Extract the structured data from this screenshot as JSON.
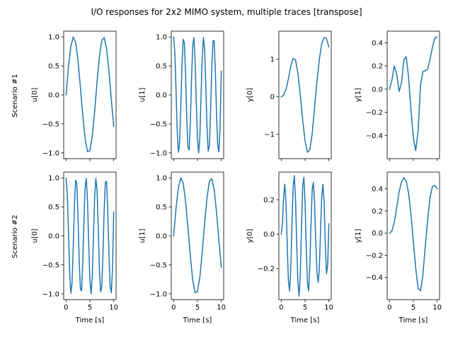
{
  "figure": {
    "title": "I/O responses for 2x2 MIMO system, multiple traces [transpose]",
    "row_labels": [
      "Scenario #1",
      "Scenario #2"
    ],
    "line_color": "#1f77b4"
  },
  "chart_data": [
    {
      "type": "line",
      "row": 0,
      "col": 0,
      "xlabel": "",
      "ylabel": "u[0]",
      "xlim": [
        -0.5,
        10.5
      ],
      "ylim": [
        -1.1,
        1.1
      ],
      "xticks": [
        0,
        5,
        10
      ],
      "xtick_labels_visible": false,
      "yticks": [
        -1.0,
        -0.5,
        0.0,
        0.5,
        1.0
      ],
      "ytick_labels": [
        "−1.0",
        "−0.5",
        "0.0",
        "0.5",
        "1.0"
      ],
      "series": [
        {
          "x": [
            0,
            0.5,
            1,
            1.5,
            2,
            2.5,
            3,
            3.5,
            4,
            4.5,
            5,
            5.5,
            6,
            6.5,
            7,
            7.5,
            8,
            8.5,
            9,
            9.5,
            10
          ],
          "y": [
            0,
            0.48,
            0.84,
            1.0,
            0.91,
            0.6,
            0.14,
            -0.35,
            -0.76,
            -0.98,
            -0.96,
            -0.71,
            -0.28,
            0.22,
            0.66,
            0.94,
            0.99,
            0.8,
            0.41,
            -0.08,
            -0.54
          ]
        }
      ]
    },
    {
      "type": "line",
      "row": 0,
      "col": 1,
      "xlabel": "",
      "ylabel": "u[1]",
      "xlim": [
        -0.5,
        10.5
      ],
      "ylim": [
        -1.1,
        1.1
      ],
      "xticks": [
        0,
        5,
        10
      ],
      "xtick_labels_visible": false,
      "yticks": [
        -1.0,
        -0.5,
        0.0,
        0.5,
        1.0
      ],
      "ytick_labels": [
        "−1.0",
        "−0.5",
        "0.0",
        "0.5",
        "1.0"
      ],
      "series": [
        {
          "x": [
            0,
            0.25,
            0.5,
            0.75,
            1,
            1.25,
            1.5,
            1.75,
            2,
            2.25,
            2.5,
            2.75,
            3,
            3.25,
            3.5,
            3.75,
            4,
            4.25,
            4.5,
            4.75,
            5,
            5.25,
            5.5,
            5.75,
            6,
            6.25,
            6.5,
            6.75,
            7,
            7.25,
            7.5,
            7.75,
            8,
            8.25,
            8.5,
            8.75,
            9,
            9.25,
            9.5,
            9.75,
            10
          ],
          "y": [
            1.0,
            0.73,
            0.07,
            -0.63,
            -0.99,
            -0.82,
            -0.21,
            0.52,
            0.96,
            0.9,
            0.35,
            -0.4,
            -0.91,
            -0.95,
            -0.48,
            0.27,
            0.84,
            0.99,
            0.6,
            -0.13,
            -0.76,
            -1.0,
            -0.71,
            -0.01,
            0.66,
            0.99,
            0.8,
            0.15,
            -0.56,
            -0.97,
            -0.88,
            -0.29,
            0.45,
            0.93,
            0.94,
            0.42,
            -0.33,
            -0.87,
            -0.98,
            -0.55,
            0.41
          ]
        }
      ]
    },
    {
      "type": "line",
      "row": 0,
      "col": 2,
      "xlabel": "",
      "ylabel": "y[0]",
      "xlim": [
        -0.5,
        10.5
      ],
      "ylim": [
        -1.65,
        1.75
      ],
      "xticks": [
        0,
        5,
        10
      ],
      "xtick_labels_visible": false,
      "yticks": [
        -1,
        0,
        1
      ],
      "ytick_labels": [
        "−1",
        "0",
        "1"
      ],
      "series": [
        {
          "x": [
            0,
            0.5,
            1,
            1.5,
            2,
            2.5,
            3,
            3.5,
            4,
            4.5,
            5,
            5.5,
            6,
            6.5,
            7,
            7.5,
            8,
            8.5,
            9,
            9.5,
            10
          ],
          "y": [
            0,
            0.04,
            0.2,
            0.48,
            0.82,
            1.02,
            0.98,
            0.62,
            0.04,
            -0.62,
            -1.18,
            -1.48,
            -1.42,
            -0.98,
            -0.28,
            0.42,
            1.0,
            1.42,
            1.58,
            1.55,
            1.33
          ]
        }
      ]
    },
    {
      "type": "line",
      "row": 0,
      "col": 3,
      "xlabel": "",
      "ylabel": "y[1]",
      "xlim": [
        -0.5,
        10.5
      ],
      "ylim": [
        -0.6,
        0.5
      ],
      "xticks": [
        0,
        5,
        10
      ],
      "xtick_labels_visible": false,
      "yticks": [
        -0.4,
        -0.2,
        0.0,
        0.2,
        0.4
      ],
      "ytick_labels": [
        "−0.4",
        "−0.2",
        "0.0",
        "0.2",
        "0.4"
      ],
      "series": [
        {
          "x": [
            0,
            0.5,
            1,
            1.5,
            2,
            2.5,
            3,
            3.5,
            4,
            4.5,
            5,
            5.5,
            6,
            6.5,
            7,
            7.5,
            8,
            8.5,
            9,
            9.5,
            10
          ],
          "y": [
            0,
            0.08,
            0.2,
            0.13,
            -0.02,
            0.05,
            0.25,
            0.28,
            0.1,
            -0.18,
            -0.42,
            -0.53,
            -0.36,
            0.03,
            0.15,
            0.16,
            0.17,
            0.26,
            0.36,
            0.44,
            0.45
          ]
        }
      ]
    },
    {
      "type": "line",
      "row": 1,
      "col": 0,
      "xlabel": "Time [s]",
      "ylabel": "u[0]",
      "xlim": [
        -0.5,
        10.5
      ],
      "ylim": [
        -1.1,
        1.1
      ],
      "xticks": [
        0,
        5,
        10
      ],
      "xtick_labels_visible": true,
      "xtick_labels": [
        "0",
        "5",
        "10"
      ],
      "yticks": [
        -1.0,
        -0.5,
        0.0,
        0.5,
        1.0
      ],
      "ytick_labels": [
        "−1.0",
        "−0.5",
        "0.0",
        "0.5",
        "1.0"
      ],
      "series": [
        {
          "x": [
            0,
            0.25,
            0.5,
            0.75,
            1,
            1.25,
            1.5,
            1.75,
            2,
            2.25,
            2.5,
            2.75,
            3,
            3.25,
            3.5,
            3.75,
            4,
            4.25,
            4.5,
            4.75,
            5,
            5.25,
            5.5,
            5.75,
            6,
            6.25,
            6.5,
            6.75,
            7,
            7.25,
            7.5,
            7.75,
            8,
            8.25,
            8.5,
            8.75,
            9,
            9.25,
            9.5,
            9.75,
            10
          ],
          "y": [
            1.0,
            0.73,
            0.07,
            -0.63,
            -0.99,
            -0.82,
            -0.21,
            0.52,
            0.96,
            0.9,
            0.35,
            -0.4,
            -0.91,
            -0.95,
            -0.48,
            0.27,
            0.84,
            0.99,
            0.6,
            -0.13,
            -0.76,
            -1.0,
            -0.71,
            -0.01,
            0.66,
            0.99,
            0.8,
            0.15,
            -0.56,
            -0.97,
            -0.88,
            -0.29,
            0.45,
            0.93,
            0.94,
            0.42,
            -0.33,
            -0.87,
            -0.98,
            -0.55,
            0.41
          ]
        }
      ]
    },
    {
      "type": "line",
      "row": 1,
      "col": 1,
      "xlabel": "Time [s]",
      "ylabel": "u[1]",
      "xlim": [
        -0.5,
        10.5
      ],
      "ylim": [
        -1.1,
        1.1
      ],
      "xticks": [
        0,
        5,
        10
      ],
      "xtick_labels_visible": true,
      "xtick_labels": [
        "0",
        "5",
        "10"
      ],
      "yticks": [
        -1.0,
        -0.5,
        0.0,
        0.5,
        1.0
      ],
      "ytick_labels": [
        "−1.0",
        "−0.5",
        "0.0",
        "0.5",
        "1.0"
      ],
      "series": [
        {
          "x": [
            0,
            0.5,
            1,
            1.5,
            2,
            2.5,
            3,
            3.5,
            4,
            4.5,
            5,
            5.5,
            6,
            6.5,
            7,
            7.5,
            8,
            8.5,
            9,
            9.5,
            10
          ],
          "y": [
            0,
            0.48,
            0.84,
            1.0,
            0.91,
            0.6,
            0.14,
            -0.35,
            -0.76,
            -0.98,
            -0.96,
            -0.71,
            -0.28,
            0.22,
            0.66,
            0.94,
            0.99,
            0.8,
            0.41,
            -0.08,
            -0.54
          ]
        }
      ]
    },
    {
      "type": "line",
      "row": 1,
      "col": 2,
      "xlabel": "Time [s]",
      "ylabel": "y[0]",
      "xlim": [
        -0.5,
        10.5
      ],
      "ylim": [
        -0.38,
        0.36
      ],
      "xticks": [
        0,
        5,
        10
      ],
      "xtick_labels_visible": true,
      "xtick_labels": [
        "0",
        "5",
        "10"
      ],
      "yticks": [
        -0.2,
        0.0,
        0.2
      ],
      "ytick_labels": [
        "−0.2",
        "0.0",
        "0.2"
      ],
      "series": [
        {
          "x": [
            0,
            0.25,
            0.5,
            0.75,
            1,
            1.25,
            1.5,
            1.75,
            2,
            2.25,
            2.5,
            2.75,
            3,
            3.25,
            3.5,
            3.75,
            4,
            4.25,
            4.5,
            4.75,
            5,
            5.25,
            5.5,
            5.75,
            6,
            6.25,
            6.5,
            6.75,
            7,
            7.25,
            7.5,
            7.75,
            8,
            8.25,
            8.5,
            8.75,
            9,
            9.25,
            9.5,
            9.75,
            10
          ],
          "y": [
            0,
            0.06,
            0.22,
            0.29,
            0.18,
            -0.06,
            -0.27,
            -0.33,
            -0.2,
            0.06,
            0.28,
            0.34,
            0.2,
            -0.06,
            -0.28,
            -0.36,
            -0.23,
            0.04,
            0.28,
            0.33,
            0.18,
            -0.08,
            -0.28,
            -0.33,
            -0.18,
            0.06,
            0.26,
            0.3,
            0.18,
            -0.04,
            -0.22,
            -0.28,
            -0.2,
            0.02,
            0.22,
            0.29,
            0.18,
            -0.06,
            -0.23,
            -0.18,
            0.06
          ]
        }
      ]
    },
    {
      "type": "line",
      "row": 1,
      "col": 3,
      "xlabel": "Time [s]",
      "ylabel": "y[1]",
      "xlim": [
        -0.5,
        10.5
      ],
      "ylim": [
        -0.6,
        0.55
      ],
      "xticks": [
        0,
        5,
        10
      ],
      "xtick_labels_visible": true,
      "xtick_labels": [
        "0",
        "5",
        "10"
      ],
      "yticks": [
        -0.4,
        -0.2,
        0.0,
        0.2,
        0.4
      ],
      "ytick_labels": [
        "−0.4",
        "−0.2",
        "0.0",
        "0.2",
        "0.4"
      ],
      "series": [
        {
          "x": [
            0,
            0.5,
            1,
            1.5,
            2,
            2.5,
            3,
            3.5,
            4,
            4.5,
            5,
            5.5,
            6,
            6.5,
            7,
            7.5,
            8,
            8.5,
            9,
            9.5,
            10
          ],
          "y": [
            0,
            0.02,
            0.1,
            0.23,
            0.37,
            0.46,
            0.5,
            0.47,
            0.36,
            0.17,
            -0.08,
            -0.32,
            -0.5,
            -0.52,
            -0.38,
            -0.12,
            0.12,
            0.32,
            0.42,
            0.43,
            0.4
          ]
        }
      ]
    }
  ]
}
